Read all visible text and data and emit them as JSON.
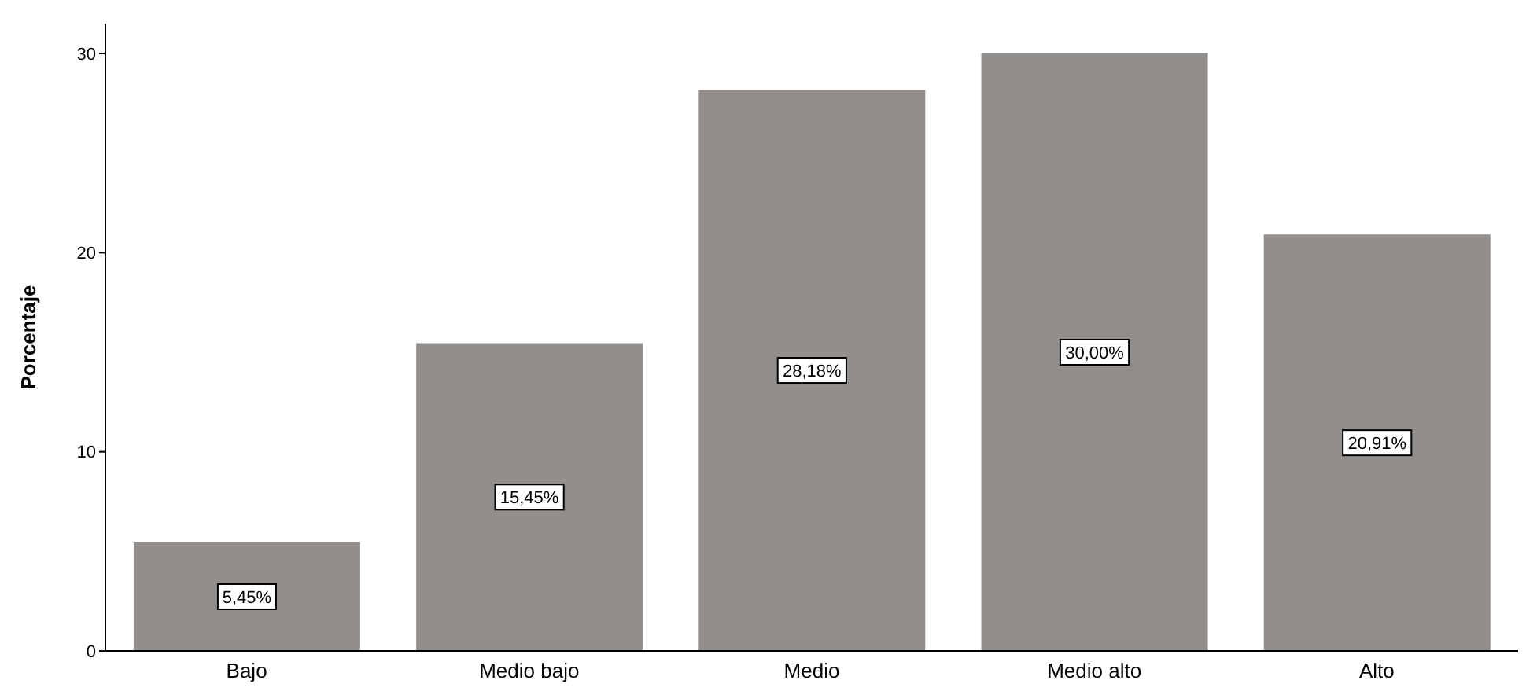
{
  "chart_data": {
    "type": "bar",
    "ylabel": "Porcentaje",
    "categories": [
      "Bajo",
      "Medio bajo",
      "Medio",
      "Medio alto",
      "Alto"
    ],
    "values": [
      5.45,
      15.45,
      28.18,
      30.0,
      20.91
    ],
    "value_labels": [
      "5,45%",
      "15,45%",
      "28,18%",
      "30,00%",
      "20,91%"
    ],
    "color": "#928e8c",
    "ylim": [
      0,
      31.5
    ],
    "yticks": [
      0,
      10,
      20,
      30
    ],
    "grid": false,
    "legend": false
  }
}
